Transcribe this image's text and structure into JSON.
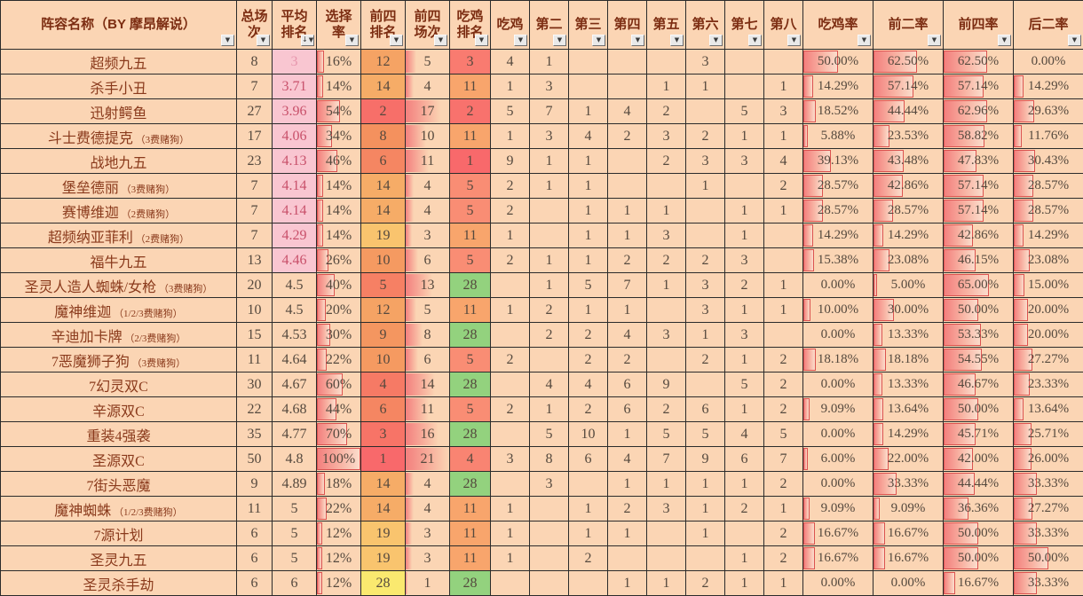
{
  "icons": {
    "filter": "▼",
    "sort_applied": "↓"
  },
  "colors": {
    "cell_bg": "#FBD5B4",
    "grid": "#2B2B2B",
    "header_text": "#7C2D12",
    "name_text": "#8A3A1C",
    "number_text": "#55493E",
    "avg_pink_bg": "#F9C6D1",
    "avg_text_red": "#C8506A",
    "avg_text_light": "#E795AD",
    "bar_border": "#DB5350",
    "bar_fill_start": "#F3807E",
    "bar_fill_mid": "#F8B4A4",
    "bar_fill_end": "#FBDDCC",
    "top4_rank_scale": [
      [
        1,
        "#F8696B"
      ],
      [
        8,
        "#F4915E"
      ],
      [
        14,
        "#F6AC67"
      ],
      [
        19,
        "#F9C46E"
      ],
      [
        28,
        "#FAE96F"
      ]
    ],
    "win_rank_scale": [
      [
        1,
        "#F8696B"
      ],
      [
        5,
        "#F98D74"
      ],
      [
        11,
        "#F8A56C"
      ],
      [
        28,
        "#93D27E"
      ]
    ],
    "avg_pink_below": 4.5
  },
  "table": {
    "headers": [
      {
        "lines": [
          "阵容名称（BY 摩昂解说）"
        ]
      },
      {
        "lines": [
          "总场",
          "次"
        ]
      },
      {
        "lines": [
          "平均",
          "排名"
        ],
        "sorted": true
      },
      {
        "lines": [
          "选择",
          "率"
        ]
      },
      {
        "lines": [
          "前四",
          "排名"
        ]
      },
      {
        "lines": [
          "前四",
          "场次"
        ]
      },
      {
        "lines": [
          "吃鸡",
          "排名"
        ]
      },
      {
        "lines": [
          "吃鸡"
        ]
      },
      {
        "lines": [
          "第二"
        ]
      },
      {
        "lines": [
          "第三"
        ]
      },
      {
        "lines": [
          "第四"
        ]
      },
      {
        "lines": [
          "第五"
        ]
      },
      {
        "lines": [
          "第六"
        ]
      },
      {
        "lines": [
          "第七"
        ]
      },
      {
        "lines": [
          "第八"
        ]
      },
      {
        "lines": [
          "吃鸡率"
        ]
      },
      {
        "lines": [
          "前二率"
        ]
      },
      {
        "lines": [
          "前四率"
        ]
      },
      {
        "lines": [
          "后二率"
        ]
      }
    ],
    "rows": [
      {
        "name": "超频九五",
        "tag": "",
        "games": 8,
        "avg": "3",
        "pick": 16,
        "top4_rank": 12,
        "top4_games": 5,
        "win_rank": 3,
        "places": [
          "4",
          "1",
          "",
          "",
          "",
          "3",
          "",
          ""
        ],
        "rates": [
          "50.00%",
          "62.50%",
          "62.50%",
          "0.00%"
        ]
      },
      {
        "name": "杀手小丑",
        "tag": "",
        "games": 7,
        "avg": "3.71",
        "pick": 14,
        "top4_rank": 14,
        "top4_games": 4,
        "win_rank": 11,
        "places": [
          "1",
          "3",
          "",
          "",
          "1",
          "1",
          "",
          "1"
        ],
        "rates": [
          "14.29%",
          "57.14%",
          "57.14%",
          "14.29%"
        ]
      },
      {
        "name": "迅射鳄鱼",
        "tag": "",
        "games": 27,
        "avg": "3.96",
        "pick": 54,
        "top4_rank": 2,
        "top4_games": 17,
        "win_rank": 2,
        "places": [
          "5",
          "7",
          "1",
          "4",
          "2",
          "",
          "5",
          "3"
        ],
        "rates": [
          "18.52%",
          "44.44%",
          "62.96%",
          "29.63%"
        ]
      },
      {
        "name": "斗士费德提克",
        "tag": "（3费赌狗）",
        "games": 17,
        "avg": "4.06",
        "pick": 34,
        "top4_rank": 8,
        "top4_games": 10,
        "win_rank": 11,
        "places": [
          "1",
          "3",
          "4",
          "2",
          "3",
          "2",
          "1",
          "1"
        ],
        "rates": [
          "5.88%",
          "23.53%",
          "58.82%",
          "11.76%"
        ]
      },
      {
        "name": "战地九五",
        "tag": "",
        "games": 23,
        "avg": "4.13",
        "pick": 46,
        "top4_rank": 6,
        "top4_games": 11,
        "win_rank": 1,
        "places": [
          "9",
          "1",
          "1",
          "",
          "2",
          "3",
          "3",
          "4"
        ],
        "rates": [
          "39.13%",
          "43.48%",
          "47.83%",
          "30.43%"
        ]
      },
      {
        "name": "堡垒德丽",
        "tag": "（3费赌狗）",
        "games": 7,
        "avg": "4.14",
        "pick": 14,
        "top4_rank": 14,
        "top4_games": 4,
        "win_rank": 5,
        "places": [
          "2",
          "1",
          "1",
          "",
          "",
          "1",
          "",
          "2"
        ],
        "rates": [
          "28.57%",
          "42.86%",
          "57.14%",
          "28.57%"
        ]
      },
      {
        "name": "赛博维迦",
        "tag": "（2费赌狗）",
        "games": 7,
        "avg": "4.14",
        "pick": 14,
        "top4_rank": 14,
        "top4_games": 4,
        "win_rank": 5,
        "places": [
          "2",
          "",
          "1",
          "1",
          "1",
          "",
          "1",
          "1"
        ],
        "rates": [
          "28.57%",
          "28.57%",
          "57.14%",
          "28.57%"
        ]
      },
      {
        "name": "超频纳亚菲利",
        "tag": "（2费赌狗）",
        "games": 7,
        "avg": "4.29",
        "pick": 14,
        "top4_rank": 19,
        "top4_games": 3,
        "win_rank": 11,
        "places": [
          "1",
          "",
          "1",
          "1",
          "3",
          "",
          "1",
          ""
        ],
        "rates": [
          "14.29%",
          "14.29%",
          "42.86%",
          "14.29%"
        ]
      },
      {
        "name": "福牛九五",
        "tag": "",
        "games": 13,
        "avg": "4.46",
        "pick": 26,
        "top4_rank": 10,
        "top4_games": 6,
        "win_rank": 5,
        "places": [
          "2",
          "1",
          "1",
          "2",
          "2",
          "2",
          "3",
          ""
        ],
        "rates": [
          "15.38%",
          "23.08%",
          "46.15%",
          "23.08%"
        ]
      },
      {
        "name": "圣灵人造人蜘蛛/女枪",
        "tag": "（3费赌狗）",
        "games": 20,
        "avg": "4.5",
        "pick": 40,
        "top4_rank": 5,
        "top4_games": 13,
        "win_rank": 28,
        "places": [
          "",
          "1",
          "5",
          "7",
          "1",
          "3",
          "2",
          "1"
        ],
        "rates": [
          "0.00%",
          "5.00%",
          "65.00%",
          "15.00%"
        ]
      },
      {
        "name": "魔神维迦",
        "tag": "（1/2/3费赌狗）",
        "games": 10,
        "avg": "4.5",
        "pick": 20,
        "top4_rank": 12,
        "top4_games": 5,
        "win_rank": 11,
        "places": [
          "1",
          "2",
          "1",
          "1",
          "",
          "3",
          "1",
          "1"
        ],
        "rates": [
          "10.00%",
          "30.00%",
          "50.00%",
          "20.00%"
        ]
      },
      {
        "name": "辛迪加卡牌",
        "tag": "（2/3费赌狗）",
        "games": 15,
        "avg": "4.53",
        "pick": 30,
        "top4_rank": 9,
        "top4_games": 8,
        "win_rank": 28,
        "places": [
          "",
          "2",
          "2",
          "4",
          "3",
          "1",
          "3",
          ""
        ],
        "rates": [
          "0.00%",
          "13.33%",
          "53.33%",
          "20.00%"
        ]
      },
      {
        "name": "7恶魔狮子狗",
        "tag": "（3费赌狗）",
        "games": 11,
        "avg": "4.64",
        "pick": 22,
        "top4_rank": 10,
        "top4_games": 6,
        "win_rank": 5,
        "places": [
          "2",
          "",
          "2",
          "2",
          "",
          "2",
          "1",
          "2"
        ],
        "rates": [
          "18.18%",
          "18.18%",
          "54.55%",
          "27.27%"
        ]
      },
      {
        "name": "7幻灵双C",
        "tag": "",
        "games": 30,
        "avg": "4.67",
        "pick": 60,
        "top4_rank": 4,
        "top4_games": 14,
        "win_rank": 28,
        "places": [
          "",
          "4",
          "4",
          "6",
          "9",
          "",
          "5",
          "2"
        ],
        "rates": [
          "0.00%",
          "13.33%",
          "46.67%",
          "23.33%"
        ]
      },
      {
        "name": "辛源双C",
        "tag": "",
        "games": 22,
        "avg": "4.68",
        "pick": 44,
        "top4_rank": 6,
        "top4_games": 11,
        "win_rank": 5,
        "places": [
          "2",
          "1",
          "2",
          "6",
          "2",
          "6",
          "1",
          "2"
        ],
        "rates": [
          "9.09%",
          "13.64%",
          "50.00%",
          "13.64%"
        ]
      },
      {
        "name": "重装4强袭",
        "tag": "",
        "games": 35,
        "avg": "4.77",
        "pick": 70,
        "top4_rank": 3,
        "top4_games": 16,
        "win_rank": 28,
        "places": [
          "",
          "5",
          "10",
          "1",
          "5",
          "5",
          "4",
          "5"
        ],
        "rates": [
          "0.00%",
          "14.29%",
          "45.71%",
          "25.71%"
        ]
      },
      {
        "name": "圣源双C",
        "tag": "",
        "games": 50,
        "avg": "4.8",
        "pick": 100,
        "top4_rank": 1,
        "top4_games": 21,
        "win_rank": 4,
        "places": [
          "3",
          "8",
          "6",
          "4",
          "7",
          "9",
          "6",
          "7"
        ],
        "rates": [
          "6.00%",
          "22.00%",
          "42.00%",
          "26.00%"
        ]
      },
      {
        "name": "7街头恶魔",
        "tag": "",
        "games": 9,
        "avg": "4.89",
        "pick": 18,
        "top4_rank": 14,
        "top4_games": 4,
        "win_rank": 28,
        "places": [
          "",
          "3",
          "",
          "1",
          "1",
          "1",
          "1",
          "2"
        ],
        "rates": [
          "0.00%",
          "33.33%",
          "44.44%",
          "33.33%"
        ]
      },
      {
        "name": "魔神蜘蛛",
        "tag": "（1/2/3费赌狗）",
        "games": 11,
        "avg": "5",
        "pick": 22,
        "top4_rank": 14,
        "top4_games": 4,
        "win_rank": 11,
        "places": [
          "1",
          "",
          "1",
          "2",
          "3",
          "1",
          "2",
          "1"
        ],
        "rates": [
          "9.09%",
          "9.09%",
          "36.36%",
          "27.27%"
        ]
      },
      {
        "name": "7源计划",
        "tag": "",
        "games": 6,
        "avg": "5",
        "pick": 12,
        "top4_rank": 19,
        "top4_games": 3,
        "win_rank": 11,
        "places": [
          "1",
          "",
          "1",
          "1",
          "",
          "1",
          "",
          "2"
        ],
        "rates": [
          "16.67%",
          "16.67%",
          "50.00%",
          "33.33%"
        ]
      },
      {
        "name": "圣灵九五",
        "tag": "",
        "games": 6,
        "avg": "5",
        "pick": 12,
        "top4_rank": 19,
        "top4_games": 3,
        "win_rank": 11,
        "places": [
          "1",
          "",
          "2",
          "",
          "",
          "",
          "1",
          "2"
        ],
        "rates": [
          "16.67%",
          "16.67%",
          "50.00%",
          "50.00%"
        ]
      },
      {
        "name": "圣灵杀手劫",
        "tag": "",
        "games": 6,
        "avg": "6",
        "pick": 12,
        "top4_rank": 28,
        "top4_games": 1,
        "win_rank": 28,
        "places": [
          "",
          "",
          "",
          "1",
          "1",
          "2",
          "1",
          "1"
        ],
        "rates": [
          "0.00%",
          "0.00%",
          "16.67%",
          "33.33%"
        ]
      }
    ]
  }
}
